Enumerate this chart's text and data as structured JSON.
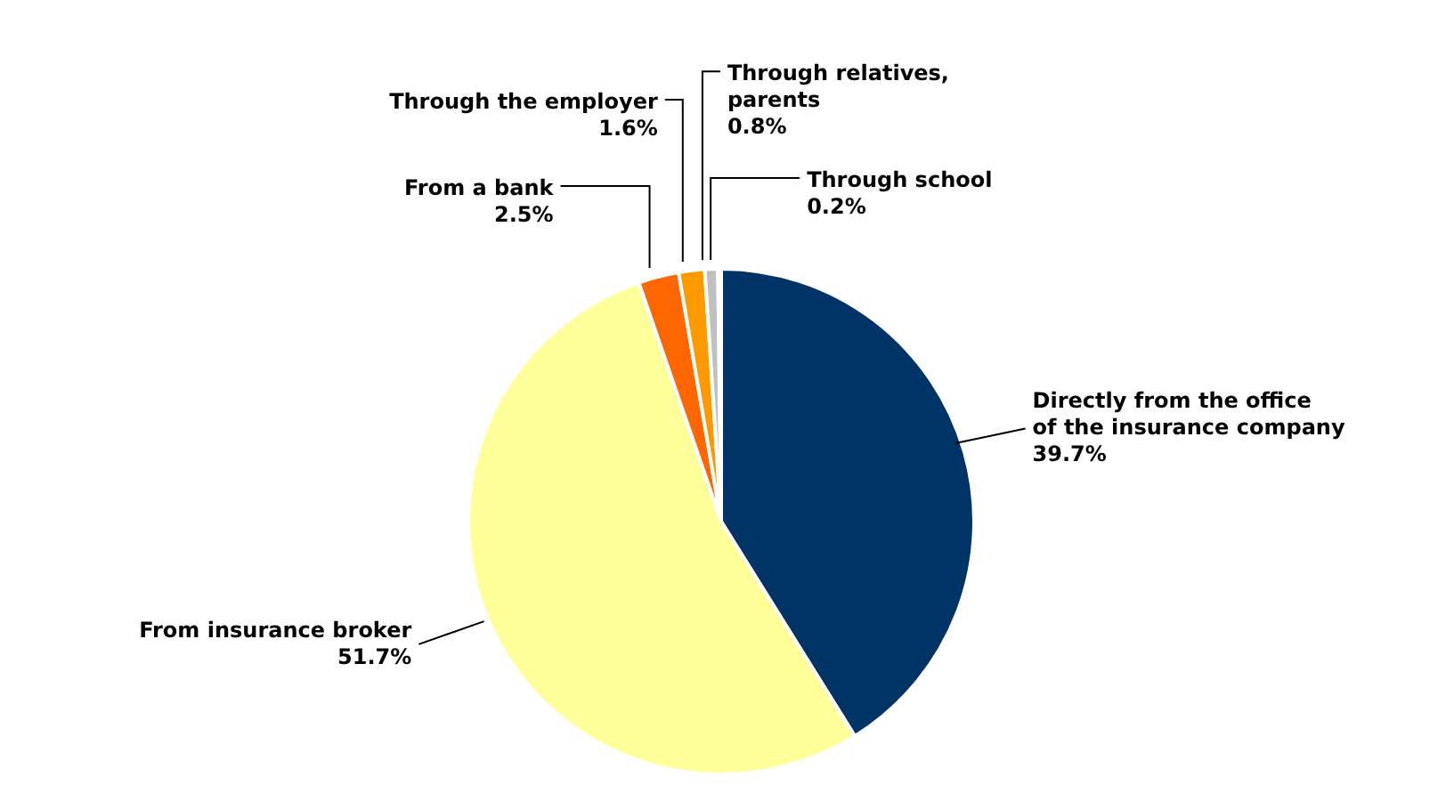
{
  "chart_data": {
    "type": "pie",
    "categories": [
      "Directly from the office of the insurance company",
      "From insurance broker",
      "From a bank",
      "Through the employer",
      "Through relatives, parents",
      "Through school"
    ],
    "values": [
      39.7,
      51.7,
      2.5,
      1.6,
      0.8,
      0.2
    ],
    "value_labels": [
      "39.7%",
      "51.7%",
      "2.5%",
      "1.6%",
      "0.8%",
      "0.2%"
    ],
    "colors": [
      "#003366",
      "#ffff99",
      "#ff6600",
      "#ff9900",
      "#c0c0c0",
      "#333333"
    ],
    "legend": false
  }
}
